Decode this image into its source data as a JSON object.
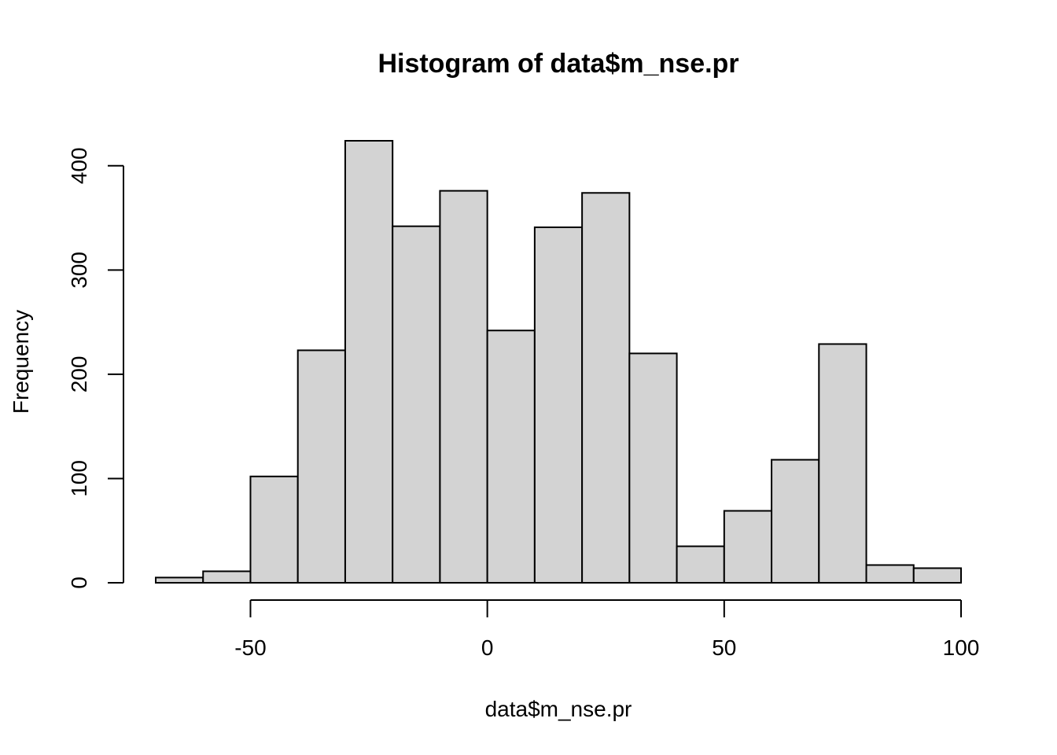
{
  "chart_data": {
    "type": "bar",
    "title": "Histogram of data$m_nse.pr",
    "xlabel": "data$m_nse.pr",
    "ylabel": "Frequency",
    "bin_edges": [
      -70,
      -60,
      -50,
      -40,
      -30,
      -20,
      -10,
      0,
      10,
      20,
      30,
      40,
      50,
      60,
      70,
      80,
      90,
      100
    ],
    "values": [
      5,
      11,
      102,
      223,
      424,
      342,
      376,
      242,
      341,
      374,
      220,
      35,
      69,
      118,
      229,
      17,
      14
    ],
    "xlim": [
      -70,
      100
    ],
    "ylim": [
      0,
      424
    ],
    "xticks": [
      -50,
      0,
      50,
      100
    ],
    "xtick_labels": [
      "-50",
      "0",
      "50",
      "100"
    ],
    "yticks": [
      0,
      100,
      200,
      300,
      400
    ],
    "ytick_labels": [
      "0",
      "100",
      "200",
      "300",
      "400"
    ],
    "bar_color": "#D3D3D3",
    "border_color": "#000000",
    "grid": false,
    "legend": "none"
  }
}
